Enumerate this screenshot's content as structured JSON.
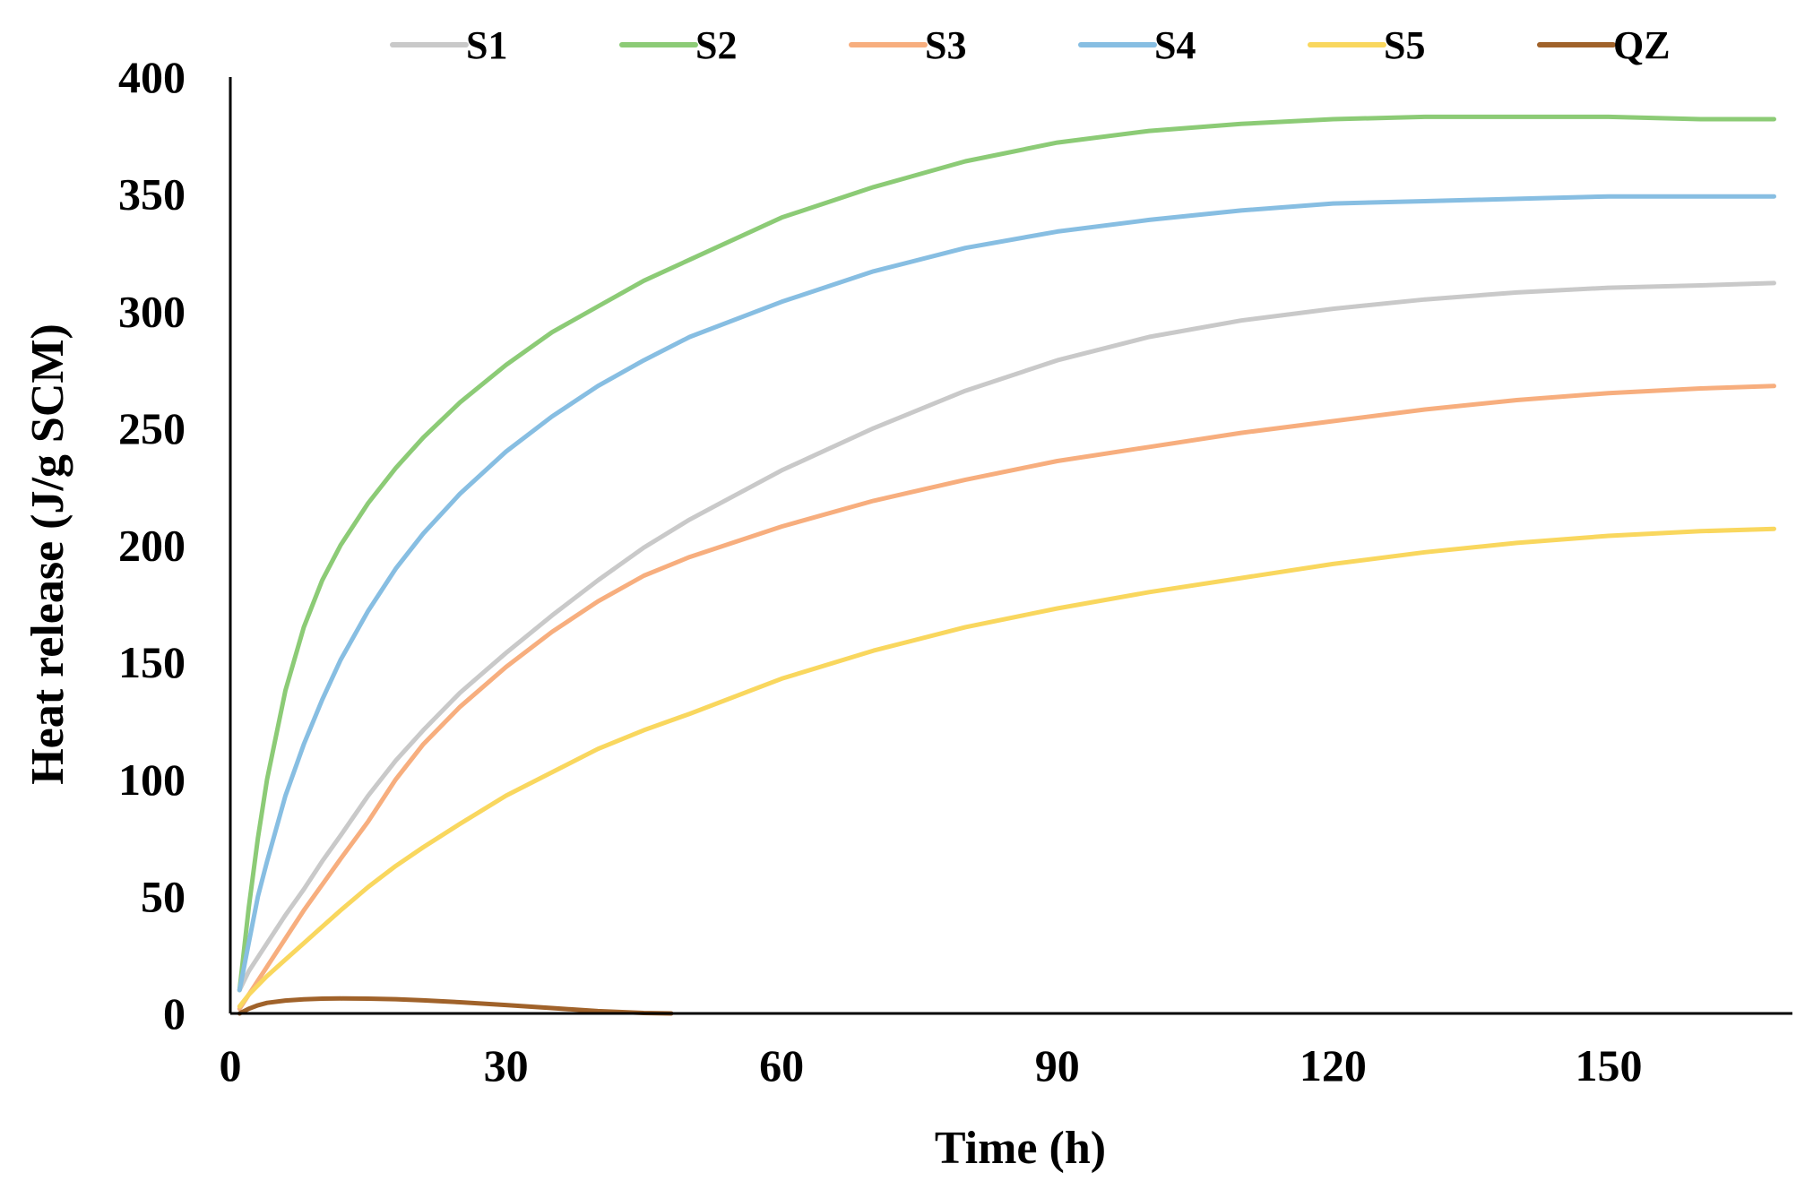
{
  "chart_data": {
    "type": "line",
    "title": "",
    "xlabel": "Time (h)",
    "ylabel": "Heat release (J/g SCM)",
    "xlim": [
      0,
      170
    ],
    "ylim": [
      0,
      400
    ],
    "xticks": [
      0,
      30,
      60,
      90,
      120,
      150
    ],
    "yticks": [
      0,
      50,
      100,
      150,
      200,
      250,
      300,
      350,
      400
    ],
    "grid": false,
    "legend_position": "top",
    "series": [
      {
        "name": "S1",
        "color": "#C9C9C9",
        "x": [
          1,
          2,
          4,
          6,
          8,
          10,
          12,
          15,
          18,
          21,
          25,
          30,
          35,
          40,
          45,
          50,
          60,
          70,
          80,
          90,
          100,
          110,
          120,
          130,
          140,
          150,
          160,
          168
        ],
        "values": [
          10,
          18,
          30,
          42,
          53,
          65,
          76,
          93,
          108,
          121,
          137,
          154,
          170,
          185,
          199,
          211,
          232,
          250,
          266,
          279,
          289,
          296,
          301,
          305,
          308,
          310,
          311,
          312
        ]
      },
      {
        "name": "S2",
        "color": "#8CCB76",
        "x": [
          1,
          2,
          3,
          4,
          6,
          8,
          10,
          12,
          15,
          18,
          21,
          25,
          30,
          35,
          40,
          45,
          50,
          60,
          70,
          80,
          90,
          100,
          110,
          120,
          130,
          140,
          150,
          160,
          168
        ],
        "values": [
          10,
          45,
          75,
          100,
          138,
          165,
          185,
          200,
          218,
          233,
          246,
          261,
          277,
          291,
          302,
          313,
          322,
          340,
          353,
          364,
          372,
          377,
          380,
          382,
          383,
          383,
          383,
          382,
          382
        ]
      },
      {
        "name": "S3",
        "color": "#F7AE7E",
        "x": [
          1,
          2,
          4,
          6,
          8,
          10,
          12,
          15,
          18,
          21,
          25,
          30,
          35,
          40,
          45,
          50,
          60,
          70,
          80,
          90,
          100,
          110,
          120,
          130,
          140,
          150,
          160,
          168
        ],
        "values": [
          2,
          8,
          20,
          32,
          44,
          55,
          66,
          82,
          100,
          115,
          131,
          148,
          163,
          176,
          187,
          195,
          208,
          219,
          228,
          236,
          242,
          248,
          253,
          258,
          262,
          265,
          267,
          268
        ]
      },
      {
        "name": "S4",
        "color": "#87BEE2",
        "x": [
          1,
          2,
          3,
          4,
          6,
          8,
          10,
          12,
          15,
          18,
          21,
          25,
          30,
          35,
          40,
          45,
          50,
          60,
          70,
          80,
          90,
          100,
          110,
          120,
          130,
          140,
          150,
          160,
          168
        ],
        "values": [
          10,
          30,
          50,
          65,
          93,
          115,
          134,
          151,
          172,
          190,
          205,
          222,
          240,
          255,
          268,
          279,
          289,
          304,
          317,
          327,
          334,
          339,
          343,
          346,
          347,
          348,
          349,
          349,
          349
        ]
      },
      {
        "name": "S5",
        "color": "#F9D75E",
        "x": [
          1,
          2,
          4,
          6,
          8,
          10,
          12,
          15,
          18,
          21,
          25,
          30,
          35,
          40,
          45,
          50,
          60,
          70,
          80,
          90,
          100,
          110,
          120,
          130,
          140,
          150,
          160,
          168
        ],
        "values": [
          3,
          8,
          16,
          23,
          30,
          37,
          44,
          54,
          63,
          71,
          81,
          93,
          103,
          113,
          121,
          128,
          143,
          155,
          165,
          173,
          180,
          186,
          192,
          197,
          201,
          204,
          206,
          207
        ]
      },
      {
        "name": "QZ",
        "color": "#A0622A",
        "x": [
          1,
          2,
          3,
          4,
          6,
          8,
          10,
          12,
          15,
          18,
          21,
          25,
          30,
          35,
          40,
          45,
          48
        ],
        "values": [
          0,
          2,
          3.5,
          4.5,
          5.5,
          6,
          6.3,
          6.4,
          6.3,
          6.1,
          5.6,
          4.8,
          3.6,
          2.3,
          1.0,
          0.2,
          0
        ]
      }
    ]
  }
}
